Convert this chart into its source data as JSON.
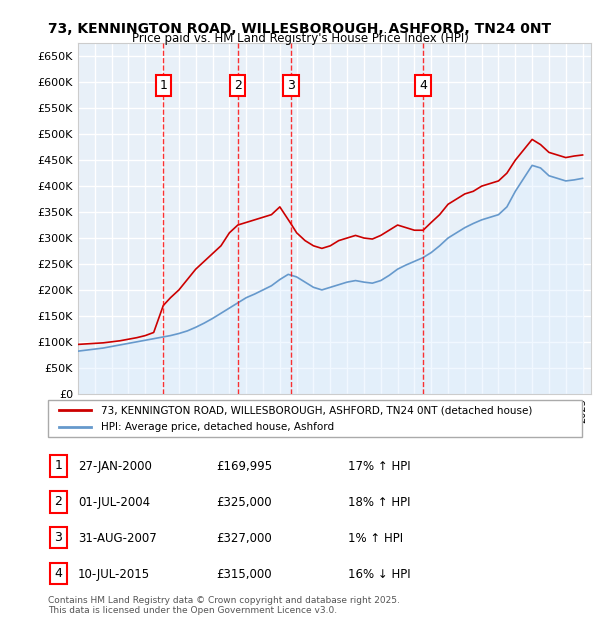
{
  "title": "73, KENNINGTON ROAD, WILLESBOROUGH, ASHFORD, TN24 0NT",
  "subtitle": "Price paid vs. HM Land Registry's House Price Index (HPI)",
  "ylabel": "",
  "ylim": [
    0,
    675000
  ],
  "yticks": [
    0,
    50000,
    100000,
    150000,
    200000,
    250000,
    300000,
    350000,
    400000,
    450000,
    500000,
    550000,
    600000,
    650000
  ],
  "xlim_start": 1995.0,
  "xlim_end": 2025.5,
  "background_color": "#e8f0f8",
  "plot_bg_color": "#e8f0f8",
  "grid_color": "#ffffff",
  "sale_color": "#cc0000",
  "hpi_color": "#6699cc",
  "hpi_fill_color": "#ddeeff",
  "sale_label": "73, KENNINGTON ROAD, WILLESBOROUGH, ASHFORD, TN24 0NT (detached house)",
  "hpi_label": "HPI: Average price, detached house, Ashford",
  "transactions": [
    {
      "num": 1,
      "date_str": "27-JAN-2000",
      "date_x": 2000.07,
      "price": 169995,
      "pct": "17%",
      "dir": "↑"
    },
    {
      "num": 2,
      "date_str": "01-JUL-2004",
      "date_x": 2004.5,
      "price": 325000,
      "pct": "18%",
      "dir": "↑"
    },
    {
      "num": 3,
      "date_str": "31-AUG-2007",
      "date_x": 2007.67,
      "price": 327000,
      "pct": "1%",
      "dir": "↑"
    },
    {
      "num": 4,
      "date_str": "10-JUL-2015",
      "date_x": 2015.52,
      "price": 315000,
      "pct": "16%",
      "dir": "↓"
    }
  ],
  "footer": "Contains HM Land Registry data © Crown copyright and database right 2025.\nThis data is licensed under the Open Government Licence v3.0.",
  "sale_data_x": [
    1995.0,
    1995.5,
    1996.0,
    1996.5,
    1997.0,
    1997.5,
    1998.0,
    1998.5,
    1999.0,
    1999.5,
    2000.07,
    2000.5,
    2001.0,
    2001.5,
    2002.0,
    2002.5,
    2003.0,
    2003.5,
    2004.0,
    2004.5,
    2005.0,
    2005.5,
    2006.0,
    2006.5,
    2007.0,
    2007.67,
    2008.0,
    2008.5,
    2009.0,
    2009.5,
    2010.0,
    2010.5,
    2011.0,
    2011.5,
    2012.0,
    2012.5,
    2013.0,
    2013.5,
    2014.0,
    2014.5,
    2015.0,
    2015.52,
    2016.0,
    2016.5,
    2017.0,
    2017.5,
    2018.0,
    2018.5,
    2019.0,
    2019.5,
    2020.0,
    2020.5,
    2021.0,
    2021.5,
    2022.0,
    2022.5,
    2023.0,
    2023.5,
    2024.0,
    2024.5,
    2025.0
  ],
  "sale_data_y": [
    95000,
    96000,
    97000,
    98000,
    100000,
    102000,
    105000,
    108000,
    112000,
    118000,
    169995,
    185000,
    200000,
    220000,
    240000,
    255000,
    270000,
    285000,
    310000,
    325000,
    330000,
    335000,
    340000,
    345000,
    360000,
    327000,
    310000,
    295000,
    285000,
    280000,
    285000,
    295000,
    300000,
    305000,
    300000,
    298000,
    305000,
    315000,
    325000,
    320000,
    315000,
    315000,
    330000,
    345000,
    365000,
    375000,
    385000,
    390000,
    400000,
    405000,
    410000,
    425000,
    450000,
    470000,
    490000,
    480000,
    465000,
    460000,
    455000,
    458000,
    460000
  ],
  "hpi_data_x": [
    1995.0,
    1995.5,
    1996.0,
    1996.5,
    1997.0,
    1997.5,
    1998.0,
    1998.5,
    1999.0,
    1999.5,
    2000.0,
    2000.5,
    2001.0,
    2001.5,
    2002.0,
    2002.5,
    2003.0,
    2003.5,
    2004.0,
    2004.5,
    2005.0,
    2005.5,
    2006.0,
    2006.5,
    2007.0,
    2007.5,
    2008.0,
    2008.5,
    2009.0,
    2009.5,
    2010.0,
    2010.5,
    2011.0,
    2011.5,
    2012.0,
    2012.5,
    2013.0,
    2013.5,
    2014.0,
    2014.5,
    2015.0,
    2015.5,
    2016.0,
    2016.5,
    2017.0,
    2017.5,
    2018.0,
    2018.5,
    2019.0,
    2019.5,
    2020.0,
    2020.5,
    2021.0,
    2021.5,
    2022.0,
    2022.5,
    2023.0,
    2023.5,
    2024.0,
    2024.5,
    2025.0
  ],
  "hpi_data_y": [
    82000,
    84000,
    86000,
    88000,
    91000,
    94000,
    97000,
    100000,
    103000,
    106000,
    109000,
    112000,
    116000,
    121000,
    128000,
    136000,
    145000,
    155000,
    165000,
    175000,
    185000,
    192000,
    200000,
    208000,
    220000,
    230000,
    225000,
    215000,
    205000,
    200000,
    205000,
    210000,
    215000,
    218000,
    215000,
    213000,
    218000,
    228000,
    240000,
    248000,
    255000,
    262000,
    272000,
    285000,
    300000,
    310000,
    320000,
    328000,
    335000,
    340000,
    345000,
    360000,
    390000,
    415000,
    440000,
    435000,
    420000,
    415000,
    410000,
    412000,
    415000
  ]
}
